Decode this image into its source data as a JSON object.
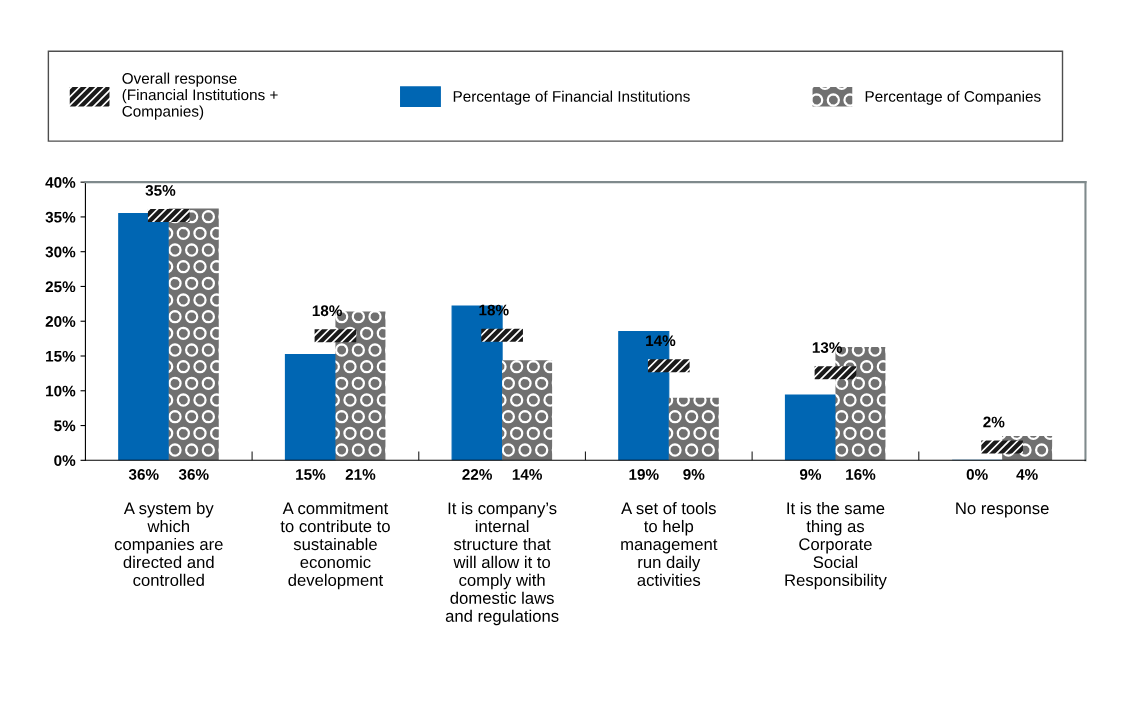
{
  "chart_data": {
    "type": "bar",
    "categories": [
      "A system by\nwhich\ncompanies are\ndirected and\ncontrolled",
      "A commitment\nto contribute to\nsustainable\neconomic\ndevelopment",
      "It is company’s\ninternal\nstructure that\nwill allow it to\ncomply with\ndomestic laws\nand regulations",
      "A set of tools\nto help\nmanagement\nrun daily\nactivities",
      "It is the same\nthing as\nCorporate\nSocial\nResponsibility",
      "No response"
    ],
    "series": [
      {
        "name": "Overall response\n(Financial Institutions +\nCompanies)",
        "type": "scatter",
        "color": "#1a1a1a",
        "values": [
          35.2,
          17.9,
          18.0,
          13.6,
          12.6,
          1.9
        ],
        "value_labels": [
          "35%",
          "18%",
          "18%",
          "14%",
          "13%",
          "2%"
        ]
      },
      {
        "name": "Percentage of Financial Institutions",
        "color": "#0066b3",
        "values": [
          35.5,
          15.2,
          22.2,
          18.5,
          9.4,
          0
        ],
        "value_labels": [
          "36%",
          "15%",
          "22%",
          "19%",
          "9%",
          "0%"
        ]
      },
      {
        "name": "Percentage of Companies",
        "color": "#707070",
        "values": [
          36.2,
          21.4,
          14.4,
          9.0,
          16.3,
          3.5
        ],
        "value_labels": [
          "36%",
          "21%",
          "14%",
          "9%",
          "16%",
          "4%"
        ]
      }
    ],
    "ylim": [
      0,
      40
    ],
    "yticks": [
      {
        "value": 0,
        "label": "0%"
      },
      {
        "value": 5,
        "label": "5%"
      },
      {
        "value": 10,
        "label": "10%"
      },
      {
        "value": 15,
        "label": "15%"
      },
      {
        "value": 20,
        "label": "20%"
      },
      {
        "value": 25,
        "label": "25%"
      },
      {
        "value": 30,
        "label": "30%"
      },
      {
        "value": 35,
        "label": "35%"
      },
      {
        "value": 40,
        "label": "40%"
      }
    ],
    "grid": false,
    "legend": "top"
  }
}
